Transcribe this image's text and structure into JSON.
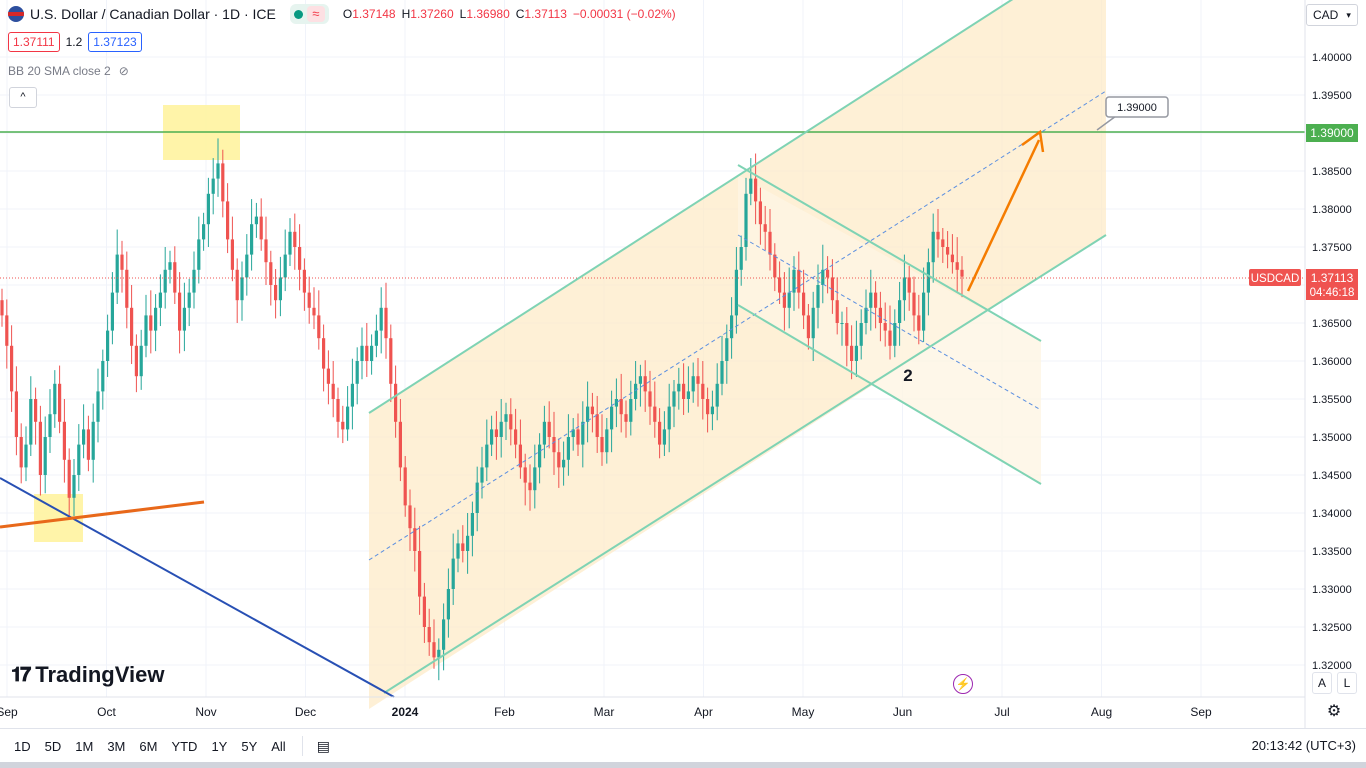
{
  "header": {
    "symbol_title": "U.S. Dollar / Canadian Dollar · 1D · ICE",
    "ohlc": [
      {
        "k": "O",
        "v": "1.37148"
      },
      {
        "k": "H",
        "v": "1.37260"
      },
      {
        "k": "L",
        "v": "1.36980"
      },
      {
        "k": "C",
        "v": "1.37113"
      }
    ],
    "change": "−0.00031 (−0.02%)",
    "bid": "1.37111",
    "spread": "1.2",
    "ask": "1.37123",
    "indicator": "BB 20 SMA close 2"
  },
  "price_axis": {
    "currency": "CAD",
    "ticks": [
      "1.40000",
      "1.39500",
      "1.39000",
      "1.38500",
      "1.38000",
      "1.37500",
      "1.37000",
      "1.36500",
      "1.36000",
      "1.35500",
      "1.35000",
      "1.34500",
      "1.34000",
      "1.33500",
      "1.33000",
      "1.32500",
      "1.32000"
    ],
    "level_label": "1.39000",
    "symbol_tag": "USDCAD",
    "last_price": "1.37113",
    "countdown": "04:46:18",
    "scale_auto": "A",
    "scale_log": "L"
  },
  "time_axis": [
    "Sep",
    "Oct",
    "Nov",
    "Dec",
    "2024",
    "Feb",
    "Mar",
    "Apr",
    "May",
    "Jun",
    "Jul",
    "Aug",
    "Sep"
  ],
  "annotations": {
    "target_callout": "1.39000",
    "wave_label": "2"
  },
  "logo_text": "TradingView",
  "bottom": {
    "periods": [
      "1D",
      "5D",
      "1M",
      "3M",
      "6M",
      "YTD",
      "1Y",
      "5Y",
      "All"
    ],
    "clock": "20:13:42 (UTC+3)"
  },
  "colors": {
    "up": "#26a69a",
    "down": "#ef5350",
    "channel_line": "#7fd3b4",
    "channel_fill": "#fdebc8",
    "level": "#4caf50",
    "arrow": "#f57c00",
    "trend_blue": "#2850b4"
  },
  "chart_data": {
    "type": "candlestick",
    "symbol": "USDCAD",
    "timeframe": "1D",
    "ylim": [
      1.318,
      1.404
    ],
    "y_ticks": [
      1.4,
      1.395,
      1.39,
      1.385,
      1.38,
      1.375,
      1.37,
      1.365,
      1.36,
      1.355,
      1.35,
      1.345,
      1.34,
      1.335,
      1.33,
      1.325,
      1.32
    ],
    "horizontal_level": 1.39,
    "last_close": 1.37113,
    "closes": [
      1.366,
      1.362,
      1.356,
      1.35,
      1.346,
      1.349,
      1.355,
      1.352,
      1.345,
      1.35,
      1.353,
      1.357,
      1.352,
      1.347,
      1.342,
      1.345,
      1.349,
      1.351,
      1.347,
      1.352,
      1.356,
      1.36,
      1.364,
      1.369,
      1.374,
      1.372,
      1.367,
      1.362,
      1.358,
      1.362,
      1.366,
      1.364,
      1.367,
      1.369,
      1.372,
      1.373,
      1.369,
      1.364,
      1.367,
      1.369,
      1.372,
      1.376,
      1.378,
      1.382,
      1.384,
      1.386,
      1.381,
      1.376,
      1.372,
      1.368,
      1.371,
      1.374,
      1.378,
      1.379,
      1.376,
      1.373,
      1.37,
      1.368,
      1.371,
      1.374,
      1.377,
      1.375,
      1.372,
      1.369,
      1.367,
      1.366,
      1.363,
      1.359,
      1.357,
      1.355,
      1.352,
      1.351,
      1.354,
      1.357,
      1.36,
      1.362,
      1.36,
      1.362,
      1.364,
      1.367,
      1.363,
      1.357,
      1.352,
      1.346,
      1.341,
      1.338,
      1.335,
      1.329,
      1.325,
      1.323,
      1.321,
      1.322,
      1.326,
      1.33,
      1.334,
      1.336,
      1.335,
      1.337,
      1.34,
      1.344,
      1.346,
      1.349,
      1.351,
      1.35,
      1.352,
      1.353,
      1.351,
      1.349,
      1.346,
      1.344,
      1.343,
      1.346,
      1.349,
      1.352,
      1.35,
      1.348,
      1.346,
      1.347,
      1.35,
      1.351,
      1.349,
      1.352,
      1.354,
      1.353,
      1.35,
      1.348,
      1.351,
      1.354,
      1.355,
      1.353,
      1.352,
      1.355,
      1.357,
      1.358,
      1.356,
      1.354,
      1.352,
      1.349,
      1.351,
      1.354,
      1.356,
      1.357,
      1.355,
      1.356,
      1.358,
      1.357,
      1.355,
      1.353,
      1.354,
      1.357,
      1.36,
      1.363,
      1.366,
      1.372,
      1.375,
      1.382,
      1.384,
      1.381,
      1.378,
      1.377,
      1.374,
      1.371,
      1.369,
      1.367,
      1.369,
      1.372,
      1.369,
      1.366,
      1.363,
      1.367,
      1.37,
      1.372,
      1.371,
      1.368,
      1.365,
      1.365,
      1.362,
      1.36,
      1.362,
      1.365,
      1.367,
      1.369,
      1.367,
      1.365,
      1.364,
      1.362,
      1.365,
      1.368,
      1.371,
      1.369,
      1.366,
      1.364,
      1.369,
      1.373,
      1.377,
      1.376,
      1.375,
      1.374,
      1.373,
      1.372,
      1.3711
    ]
  }
}
